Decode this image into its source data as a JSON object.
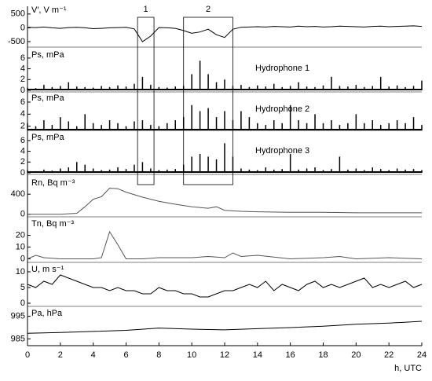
{
  "chart_data": [
    {
      "type": "line",
      "label": "V′, V m⁻¹",
      "color": "#000",
      "xlim": [
        0,
        24
      ],
      "ylim": [
        -700,
        780
      ],
      "yticks": [
        -500,
        0,
        500
      ],
      "x": [
        0,
        0.5,
        1,
        1.5,
        2,
        2.5,
        3,
        3.5,
        4,
        4.5,
        5,
        5.5,
        6,
        6.5,
        7,
        7.5,
        8,
        8.5,
        9,
        9.5,
        10,
        10.5,
        11,
        11.5,
        12,
        12.5,
        13,
        13.5,
        14,
        14.5,
        15,
        15.5,
        16,
        16.5,
        17,
        17.5,
        18,
        18.5,
        19,
        19.5,
        20,
        20.5,
        21,
        21.5,
        22,
        22.5,
        23,
        23.5,
        24
      ],
      "values": [
        20,
        10,
        30,
        0,
        -20,
        10,
        20,
        0,
        -30,
        -20,
        0,
        10,
        20,
        -40,
        -500,
        -300,
        10,
        0,
        -20,
        -100,
        -200,
        -150,
        -50,
        -250,
        -350,
        -50,
        20,
        30,
        40,
        30,
        50,
        40,
        30,
        60,
        40,
        50,
        30,
        40,
        60,
        50,
        40,
        30,
        50,
        60,
        40,
        50,
        60,
        70,
        50
      ]
    },
    {
      "type": "bar",
      "label": "Ps, mPa",
      "subtitle": "Hydrophone 1",
      "color": "#000",
      "xlim": [
        0,
        24
      ],
      "ylim": [
        -0.3,
        7.3
      ],
      "yticks": [
        0,
        2,
        4,
        6
      ],
      "x": [
        0,
        0.5,
        1,
        1.5,
        2,
        2.5,
        3,
        3.5,
        4,
        4.5,
        5,
        5.5,
        6,
        6.5,
        7,
        7.5,
        8,
        8.5,
        9,
        9.5,
        10,
        10.5,
        11,
        11.5,
        12,
        12.5,
        13,
        13.5,
        14,
        14.5,
        15,
        15.5,
        16,
        16.5,
        17,
        17.5,
        18,
        18.5,
        19,
        19.5,
        20,
        20.5,
        21,
        21.5,
        22,
        22.5,
        23,
        23.5,
        24
      ],
      "values": [
        0.5,
        0.4,
        1,
        0.6,
        0.8,
        1.5,
        0.7,
        0.6,
        0.5,
        0.8,
        0.6,
        0.9,
        0.7,
        1.2,
        2.5,
        1,
        0.6,
        0.5,
        0.7,
        0.8,
        3,
        5.5,
        3,
        1.5,
        2,
        0.8,
        1,
        0.6,
        0.9,
        0.7,
        1.2,
        0.6,
        0.8,
        1.5,
        0.7,
        0.6,
        0.9,
        2.5,
        0.8,
        0.7,
        1,
        0.6,
        0.8,
        2.5,
        0.7,
        0.9,
        0.6,
        0.8,
        1.8
      ]
    },
    {
      "type": "bar",
      "label": "Ps, mPa",
      "subtitle": "Hydrophone 2",
      "color": "#000",
      "xlim": [
        0,
        24
      ],
      "ylim": [
        1.3,
        7.3
      ],
      "yticks": [
        2,
        4,
        6
      ],
      "x": [
        0,
        0.5,
        1,
        1.5,
        2,
        2.5,
        3,
        3.5,
        4,
        4.5,
        5,
        5.5,
        6,
        6.5,
        7,
        7.5,
        8,
        8.5,
        9,
        9.5,
        10,
        10.5,
        11,
        11.5,
        12,
        12.5,
        13,
        13.5,
        14,
        14.5,
        15,
        15.5,
        16,
        16.5,
        17,
        17.5,
        18,
        18.5,
        19,
        19.5,
        20,
        20.5,
        21,
        21.5,
        22,
        22.5,
        23,
        23.5,
        24
      ],
      "values": [
        2.5,
        2,
        3,
        2.2,
        3.5,
        2.8,
        2,
        4,
        2.5,
        2.2,
        3,
        2.5,
        2,
        2.8,
        3,
        2.2,
        2,
        2.5,
        3,
        3.5,
        5.5,
        4.5,
        5,
        3.5,
        4.5,
        3,
        4.5,
        3.5,
        2.5,
        2.2,
        3,
        2.5,
        5.5,
        3,
        2.5,
        4,
        2.5,
        3,
        2.2,
        2.5,
        4,
        2.5,
        3,
        2.2,
        2.5,
        3,
        2.5,
        3.5,
        2.2
      ]
    },
    {
      "type": "bar",
      "label": "Ps, mPa",
      "subtitle": "Hydrophone 3",
      "color": "#000",
      "xlim": [
        0,
        24
      ],
      "ylim": [
        -0.3,
        7.3
      ],
      "yticks": [
        0,
        2,
        4,
        6
      ],
      "x": [
        0,
        0.5,
        1,
        1.5,
        2,
        2.5,
        3,
        3.5,
        4,
        4.5,
        5,
        5.5,
        6,
        6.5,
        7,
        7.5,
        8,
        8.5,
        9,
        9.5,
        10,
        10.5,
        11,
        11.5,
        12,
        12.5,
        13,
        13.5,
        14,
        14.5,
        15,
        15.5,
        16,
        16.5,
        17,
        17.5,
        18,
        18.5,
        19,
        19.5,
        20,
        20.5,
        21,
        21.5,
        22,
        22.5,
        23,
        23.5,
        24
      ],
      "values": [
        0.5,
        0.3,
        0.6,
        0.4,
        0.8,
        1,
        2,
        1.5,
        0.8,
        0.5,
        0.6,
        1,
        0.7,
        1.5,
        2,
        0.8,
        0.5,
        0.6,
        0.7,
        1.5,
        3,
        3.5,
        3,
        2.5,
        5.5,
        3,
        0.8,
        0.6,
        0.5,
        1,
        0.6,
        0.7,
        3.5,
        0.6,
        0.8,
        1,
        0.5,
        0.7,
        3,
        0.6,
        0.8,
        0.5,
        1,
        0.7,
        0.5,
        0.8,
        0.6,
        0.7,
        0.5
      ]
    },
    {
      "type": "line",
      "label": "Rn, Bq m⁻³",
      "color": "#555",
      "xlim": [
        0,
        24
      ],
      "ylim": [
        -50,
        700
      ],
      "yticks": [
        0,
        400
      ],
      "x": [
        0,
        1,
        2,
        3,
        3.5,
        4,
        4.5,
        5,
        5.5,
        6,
        7,
        8,
        9,
        10,
        11,
        11.5,
        12,
        13,
        14,
        16,
        18,
        20,
        22,
        24
      ],
      "values": [
        0,
        0,
        0,
        20,
        150,
        300,
        350,
        520,
        510,
        440,
        340,
        260,
        200,
        150,
        120,
        150,
        80,
        60,
        50,
        40,
        40,
        30,
        30,
        30
      ]
    },
    {
      "type": "line",
      "label": "Tn, Bq m⁻³",
      "color": "#555",
      "xlim": [
        0,
        24
      ],
      "ylim": [
        -3,
        33
      ],
      "yticks": [
        0,
        10,
        20
      ],
      "x": [
        0,
        0.5,
        1,
        2,
        3,
        4,
        4.5,
        5,
        5.5,
        6,
        7,
        8,
        10,
        11,
        12,
        12.5,
        13,
        14,
        16,
        18,
        19,
        20,
        22,
        24
      ],
      "values": [
        0,
        3,
        1,
        0,
        0,
        0,
        1,
        23,
        12,
        0,
        0,
        1,
        1,
        2,
        1,
        5,
        2,
        3,
        0,
        1,
        2,
        0,
        1,
        0
      ]
    },
    {
      "type": "line",
      "label": "U, m s⁻¹",
      "color": "#000",
      "xlim": [
        0,
        24
      ],
      "ylim": [
        -1,
        12
      ],
      "yticks": [
        0,
        5,
        10
      ],
      "x": [
        0,
        0.5,
        1,
        1.5,
        2,
        2.5,
        3,
        3.5,
        4,
        4.5,
        5,
        5.5,
        6,
        6.5,
        7,
        7.5,
        8,
        8.5,
        9,
        9.5,
        10,
        10.5,
        11,
        11.5,
        12,
        12.5,
        13,
        13.5,
        14,
        14.5,
        15,
        15.5,
        16,
        16.5,
        17,
        17.5,
        18,
        18.5,
        19,
        19.5,
        20,
        20.5,
        21,
        21.5,
        22,
        22.5,
        23,
        23.5,
        24
      ],
      "values": [
        6,
        5,
        7,
        6,
        9,
        8,
        7,
        6,
        5,
        5,
        4,
        5,
        4,
        4,
        3,
        3,
        5,
        4,
        4,
        3,
        3,
        2,
        2,
        3,
        4,
        4,
        5,
        6,
        5,
        7,
        4,
        6,
        5,
        4,
        6,
        7,
        5,
        6,
        5,
        6,
        7,
        8,
        5,
        6,
        5,
        6,
        7,
        5,
        6
      ]
    },
    {
      "type": "line",
      "label": "Pa, hPa",
      "color": "#000",
      "xlim": [
        0,
        24
      ],
      "ylim": [
        982,
        998
      ],
      "yticks": [
        985,
        995
      ],
      "x": [
        0,
        2,
        4,
        6,
        8,
        10,
        12,
        14,
        16,
        18,
        20,
        22,
        24
      ],
      "values": [
        987.5,
        987.8,
        988.3,
        988.8,
        989.8,
        989.3,
        989.0,
        989.5,
        990.0,
        990.6,
        991.5,
        992.0,
        992.8
      ],
      "xticks": [
        0,
        2,
        4,
        6,
        8,
        10,
        12,
        14,
        16,
        18,
        20,
        22,
        24
      ],
      "xlabel": "h, UTC"
    }
  ],
  "regions": [
    {
      "label": "1",
      "x": [
        6.7,
        7.7
      ]
    },
    {
      "label": "2",
      "x": [
        9.5,
        12.5
      ]
    }
  ]
}
